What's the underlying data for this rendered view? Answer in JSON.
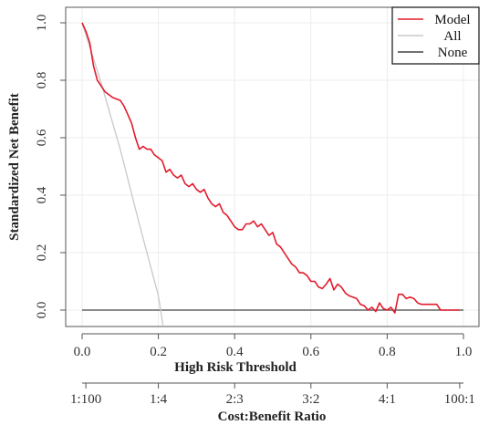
{
  "chart_data": {
    "type": "line",
    "xlabel": "High Risk Threshold",
    "ylabel": "Standardized Net Benefit",
    "secondary_xlabel": "Cost:Benefit Ratio",
    "xlim": [
      0,
      1
    ],
    "ylim": [
      0,
      1
    ],
    "x_ticks": [
      "0.0",
      "0.2",
      "0.4",
      "0.6",
      "0.8",
      "1.0"
    ],
    "y_ticks": [
      "0.0",
      "0.2",
      "0.4",
      "0.6",
      "0.8",
      "1.0"
    ],
    "secondary_ticks": [
      {
        "x": 0.0099,
        "label": "1:100"
      },
      {
        "x": 0.2,
        "label": "1:4"
      },
      {
        "x": 0.4,
        "label": "2:3"
      },
      {
        "x": 0.6,
        "label": "3:2"
      },
      {
        "x": 0.8,
        "label": "4:1"
      },
      {
        "x": 0.9901,
        "label": "100:1"
      }
    ],
    "grid": true,
    "legend_position": "top-right",
    "series": [
      {
        "name": "Model",
        "color": "#e41a2c",
        "x": [
          0.0,
          0.01,
          0.02,
          0.03,
          0.04,
          0.05,
          0.06,
          0.07,
          0.08,
          0.09,
          0.1,
          0.11,
          0.12,
          0.13,
          0.14,
          0.15,
          0.16,
          0.17,
          0.18,
          0.19,
          0.2,
          0.21,
          0.22,
          0.23,
          0.24,
          0.25,
          0.26,
          0.27,
          0.28,
          0.29,
          0.3,
          0.31,
          0.32,
          0.33,
          0.34,
          0.35,
          0.36,
          0.37,
          0.38,
          0.39,
          0.4,
          0.41,
          0.42,
          0.43,
          0.44,
          0.45,
          0.46,
          0.47,
          0.48,
          0.49,
          0.5,
          0.51,
          0.52,
          0.53,
          0.54,
          0.55,
          0.56,
          0.57,
          0.58,
          0.59,
          0.6,
          0.61,
          0.62,
          0.63,
          0.64,
          0.65,
          0.66,
          0.67,
          0.68,
          0.69,
          0.7,
          0.71,
          0.72,
          0.73,
          0.74,
          0.75,
          0.76,
          0.77,
          0.78,
          0.79,
          0.8,
          0.81,
          0.82,
          0.83,
          0.84,
          0.85,
          0.86,
          0.87,
          0.88,
          0.89,
          0.9,
          0.91,
          0.92,
          0.93,
          0.94,
          0.95,
          0.96,
          0.97,
          0.98,
          0.99
        ],
        "values": [
          1.0,
          0.97,
          0.93,
          0.85,
          0.8,
          0.78,
          0.76,
          0.75,
          0.74,
          0.735,
          0.73,
          0.71,
          0.68,
          0.65,
          0.6,
          0.56,
          0.57,
          0.56,
          0.56,
          0.54,
          0.53,
          0.52,
          0.48,
          0.49,
          0.47,
          0.46,
          0.47,
          0.44,
          0.43,
          0.44,
          0.42,
          0.41,
          0.42,
          0.39,
          0.37,
          0.36,
          0.37,
          0.34,
          0.33,
          0.31,
          0.29,
          0.28,
          0.28,
          0.3,
          0.3,
          0.31,
          0.29,
          0.3,
          0.28,
          0.26,
          0.27,
          0.23,
          0.22,
          0.2,
          0.18,
          0.16,
          0.15,
          0.13,
          0.13,
          0.12,
          0.1,
          0.1,
          0.08,
          0.075,
          0.09,
          0.11,
          0.07,
          0.09,
          0.08,
          0.06,
          0.05,
          0.045,
          0.04,
          0.02,
          0.015,
          0.0,
          0.01,
          -0.005,
          0.025,
          0.005,
          0.0,
          0.01,
          -0.01,
          0.055,
          0.055,
          0.04,
          0.045,
          0.04,
          0.025,
          0.02,
          0.02,
          0.02,
          0.02,
          0.02,
          0.0,
          0.0,
          0.0,
          0.0,
          0.0,
          0.0
        ]
      },
      {
        "name": "All",
        "color": "#c8c8c8",
        "x": [
          0.0,
          0.05,
          0.1,
          0.15,
          0.2,
          0.215
        ],
        "values": [
          1.0,
          0.79,
          0.56,
          0.3,
          0.05,
          -0.08
        ]
      },
      {
        "name": "None",
        "color": "#444444",
        "x": [
          0.0,
          1.0
        ],
        "values": [
          0.0,
          0.0
        ]
      }
    ]
  }
}
